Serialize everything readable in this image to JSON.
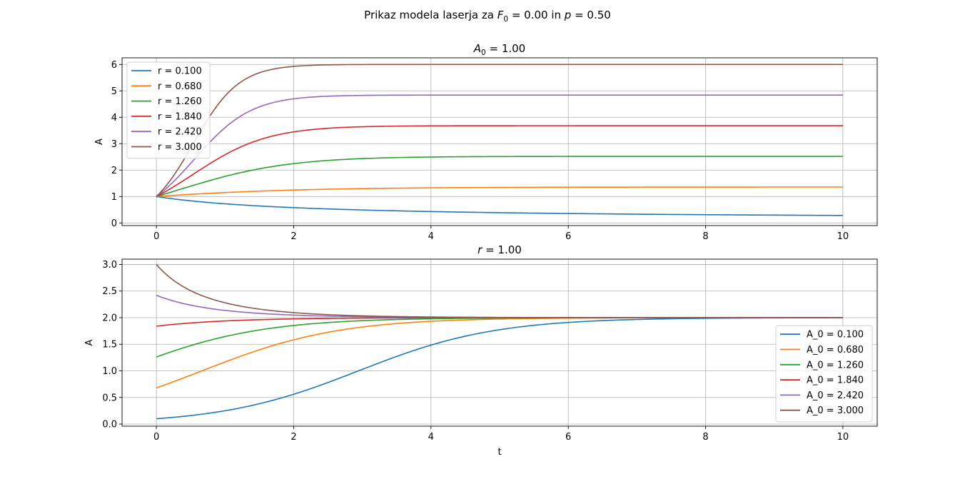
{
  "figure": {
    "suptitle_prefix": "Prikaz modela laserja za ",
    "suptitle_f": "F",
    "suptitle_f_sub": "0",
    "suptitle_f_val": " = 0.00 in ",
    "suptitle_p": "p",
    "suptitle_p_val": " = 0.50"
  },
  "chart_data": [
    {
      "type": "line",
      "title": "A_0 = 1.00",
      "title_var": "A",
      "title_sub": "0",
      "title_val": " = 1.00",
      "xlabel": "",
      "ylabel": "A",
      "xlim": [
        -0.5,
        10.5
      ],
      "ylim": [
        -0.1,
        6.25
      ],
      "xticks": [
        0,
        2,
        4,
        6,
        8,
        10
      ],
      "yticks": [
        0,
        1,
        2,
        3,
        4,
        5,
        6
      ],
      "grid": true,
      "legend_position": "upper left",
      "model": "dA/dt = A(r - p*A), A(0) = A0",
      "series": [
        {
          "name": "r = 0.100",
          "color": "#1f77b4",
          "r": 0.1,
          "A0": 1.0
        },
        {
          "name": "r = 0.680",
          "color": "#ff7f0e",
          "r": 0.68,
          "A0": 1.0
        },
        {
          "name": "r = 1.260",
          "color": "#2ca02c",
          "r": 1.26,
          "A0": 1.0
        },
        {
          "name": "r = 1.840",
          "color": "#d62728",
          "r": 1.84,
          "A0": 1.0
        },
        {
          "name": "r = 2.420",
          "color": "#9467bd",
          "r": 2.42,
          "A0": 1.0
        },
        {
          "name": "r = 3.000",
          "color": "#8c564b",
          "r": 3.0,
          "A0": 1.0
        }
      ]
    },
    {
      "type": "line",
      "title": "r = 1.00",
      "title_var": "r",
      "title_sub": "",
      "title_val": " = 1.00",
      "xlabel": "t",
      "ylabel": "A",
      "xlim": [
        -0.5,
        10.5
      ],
      "ylim": [
        -0.04,
        3.1
      ],
      "xticks": [
        0,
        2,
        4,
        6,
        8,
        10
      ],
      "yticks": [
        0.0,
        0.5,
        1.0,
        1.5,
        2.0,
        2.5,
        3.0
      ],
      "ytick_labels": [
        "0.0",
        "0.5",
        "1.0",
        "1.5",
        "2.0",
        "2.5",
        "3.0"
      ],
      "grid": true,
      "legend_position": "lower right",
      "model": "dA/dt = A(r - p*A), A(0) = A0",
      "series": [
        {
          "name": "A_0 = 0.100",
          "color": "#1f77b4",
          "r": 1.0,
          "A0": 0.1
        },
        {
          "name": "A_0 = 0.680",
          "color": "#ff7f0e",
          "r": 1.0,
          "A0": 0.68
        },
        {
          "name": "A_0 = 1.260",
          "color": "#2ca02c",
          "r": 1.0,
          "A0": 1.26
        },
        {
          "name": "A_0 = 1.840",
          "color": "#d62728",
          "r": 1.0,
          "A0": 1.84
        },
        {
          "name": "A_0 = 2.420",
          "color": "#9467bd",
          "r": 1.0,
          "A0": 2.42
        },
        {
          "name": "A_0 = 3.000",
          "color": "#8c564b",
          "r": 1.0,
          "A0": 3.0
        }
      ]
    }
  ],
  "params": {
    "p": 0.5,
    "t_end": 10
  }
}
